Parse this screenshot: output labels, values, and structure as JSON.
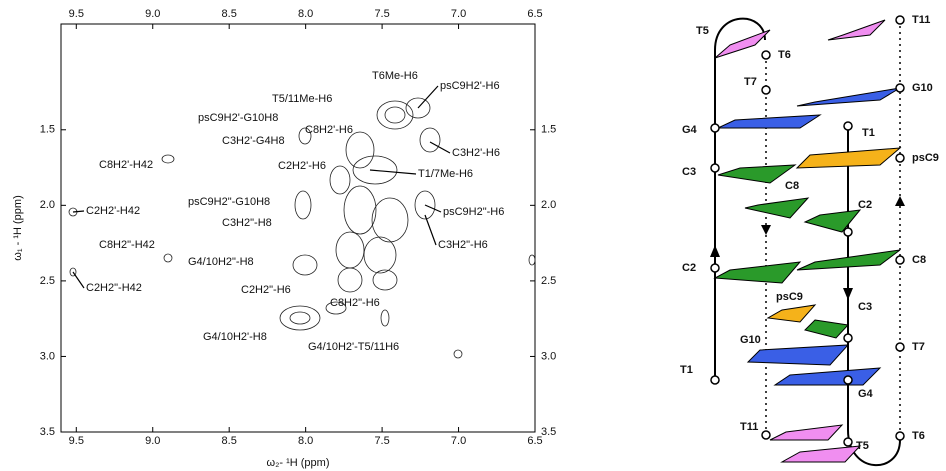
{
  "spectrum": {
    "x_label": "ω₂- ¹H (ppm)",
    "y_label": "ω₁ - ¹H (ppm)",
    "xlim": [
      9.6,
      6.5
    ],
    "ylim": [
      0.8,
      3.5
    ],
    "xticks": [
      9.5,
      {
        "value": 9,
        "label": "9.0"
      },
      8.5,
      {
        "value": 8,
        "label": "8.0"
      },
      7.5,
      {
        "value": 7,
        "label": "7.0"
      },
      6.5
    ],
    "yticks": [
      1.5,
      {
        "value": 2,
        "label": "2.0"
      },
      2.5,
      {
        "value": 3,
        "label": "3.0"
      },
      3.5
    ],
    "annotations": [
      "T6Me-H6",
      "psC9H2'-H6",
      "T5/11Me-H6",
      "psC9H2'-G10H8",
      "C8H2'-H6",
      "C3H2'-G4H8",
      "C3H2'-H6",
      "C8H2'-H42",
      "C2H2'-H6",
      "T1/7Me-H6",
      "psC9H2\"-G10H8",
      "C2H2'-H42",
      "psC9H2\"-H6",
      "C3H2\"-H8",
      "C8H2\"-H42",
      "C3H2\"-H6",
      "G4/10H2\"-H8",
      "C2H2\"-H6",
      "C2H2\"-H42",
      "C8H2\"-H6",
      "G4/10H2'-H8",
      "G4/10H2'-T5/11H6"
    ]
  },
  "diagram": {
    "labels": [
      "T5",
      "T6",
      "T11",
      "T7",
      "G10",
      "G4",
      "T1",
      "C3",
      "psC9",
      "C8",
      "C2",
      "C2",
      "C8",
      "psC9",
      "C3",
      "G10",
      "T7",
      "T1",
      "G4",
      "T11",
      "T5",
      "T6"
    ]
  }
}
